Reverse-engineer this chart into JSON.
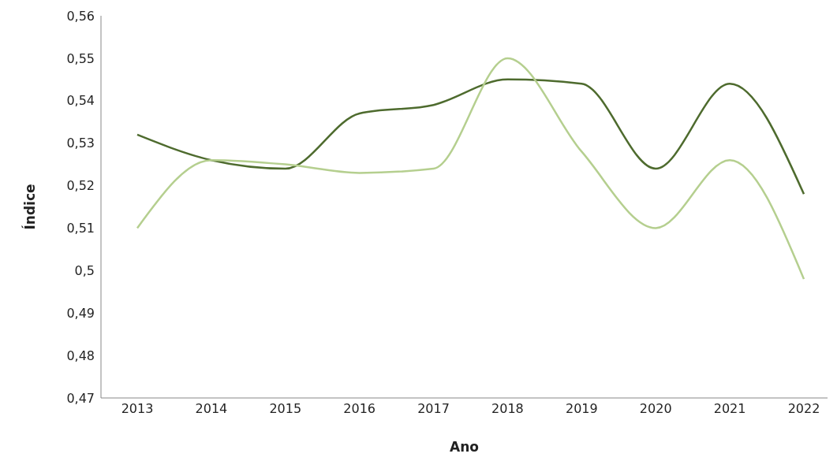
{
  "chart_data": {
    "type": "line",
    "xlabel": "Ano",
    "ylabel": "Índice",
    "categories": [
      "2013",
      "2014",
      "2015",
      "2016",
      "2017",
      "2018",
      "2019",
      "2020",
      "2021",
      "2022"
    ],
    "series": [
      {
        "color": "#4e6b2e",
        "values": [
          0.532,
          0.526,
          0.524,
          0.537,
          0.539,
          0.545,
          0.544,
          0.524,
          0.544,
          0.518
        ]
      },
      {
        "color": "#b5cf8f",
        "values": [
          0.51,
          0.526,
          0.525,
          0.523,
          0.524,
          0.55,
          0.528,
          0.51,
          0.526,
          0.498
        ]
      }
    ],
    "ylim": [
      0.47,
      0.56
    ],
    "yticks": [
      {
        "value": 0.47,
        "label": "0,47"
      },
      {
        "value": 0.48,
        "label": "0,48"
      },
      {
        "value": 0.49,
        "label": "0,49"
      },
      {
        "value": 0.5,
        "label": "0,5"
      },
      {
        "value": 0.51,
        "label": "0,51"
      },
      {
        "value": 0.52,
        "label": "0,52"
      },
      {
        "value": 0.53,
        "label": "0,53"
      },
      {
        "value": 0.54,
        "label": "0,54"
      },
      {
        "value": 0.55,
        "label": "0,55"
      },
      {
        "value": 0.56,
        "label": "0,56"
      }
    ],
    "grid": false,
    "legend": false,
    "marker": "none",
    "line_style": "solid"
  }
}
